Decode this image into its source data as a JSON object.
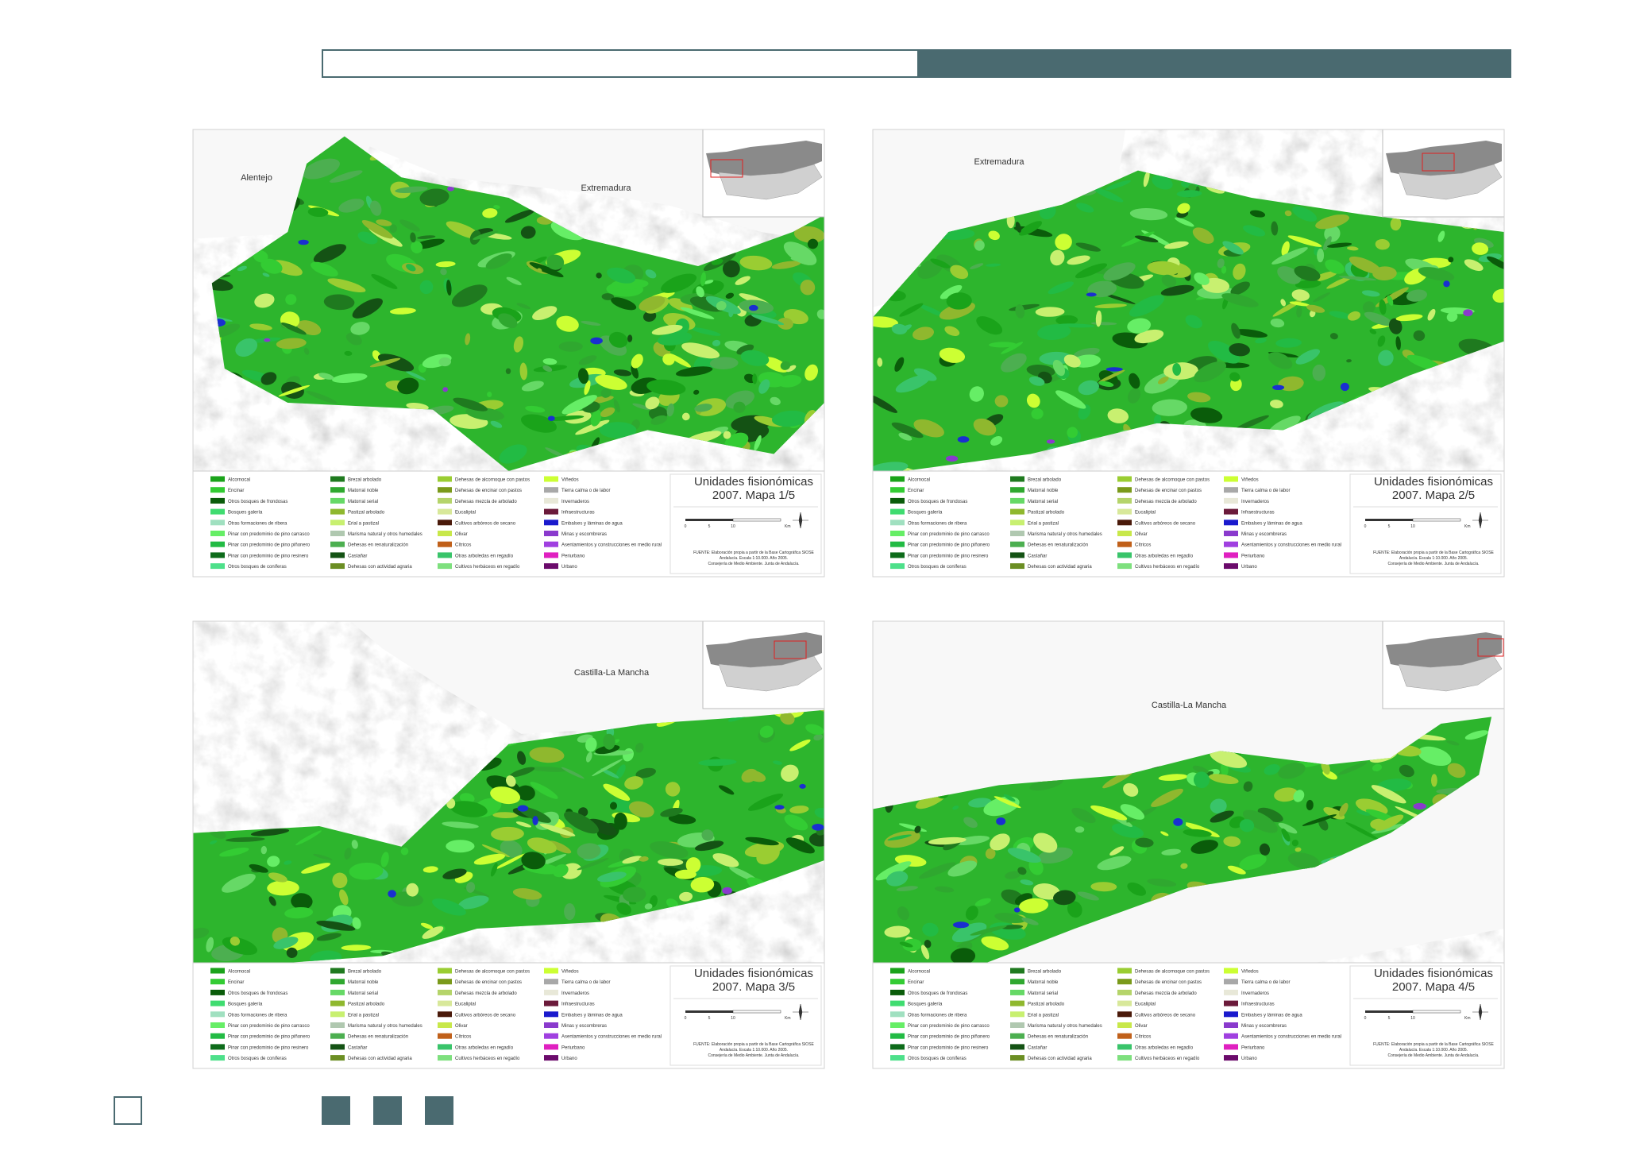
{
  "maps": [
    {
      "regions": [
        "Alentejo",
        "Extremadura"
      ],
      "title": "Unidades fisionómicas",
      "subtitle": "2007. Mapa 1/5"
    },
    {
      "regions": [
        "Extremadura"
      ],
      "title": "Unidades fisionómicas",
      "subtitle": "2007. Mapa 2/5"
    },
    {
      "regions": [
        "Castilla-La Mancha"
      ],
      "title": "Unidades fisionómicas",
      "subtitle": "2007. Mapa 3/5"
    },
    {
      "regions": [
        "Castilla-La Mancha"
      ],
      "title": "Unidades fisionómicas",
      "subtitle": "2007. Mapa 4/5"
    }
  ],
  "legend": [
    {
      "label": "Alcornocal",
      "color": "#1aa31a"
    },
    {
      "label": "Encinar",
      "color": "#33cc33"
    },
    {
      "label": "Otros bosques de frondosas",
      "color": "#0a5c0a"
    },
    {
      "label": "Bosques galería",
      "color": "#3fdc70"
    },
    {
      "label": "Otras formaciones de ribera",
      "color": "#a0e0c0"
    },
    {
      "label": "Pinar con predominio de pino carrasco",
      "color": "#66ee66"
    },
    {
      "label": "Pinar con predominio de pino piñonero",
      "color": "#22bb44"
    },
    {
      "label": "Pinar con predominio de pino resinero",
      "color": "#0d6b1a"
    },
    {
      "label": "Otros bosques de coníferas",
      "color": "#4de08a"
    },
    {
      "label": "Brezal arbolado",
      "color": "#1f7a1f"
    },
    {
      "label": "Matorral noble",
      "color": "#2fa82f"
    },
    {
      "label": "Matorral serial",
      "color": "#66d966"
    },
    {
      "label": "Pastizal arbolado",
      "color": "#8fb82e"
    },
    {
      "label": "Erial a pastizal",
      "color": "#c8f070"
    },
    {
      "label": "Marisma natural y otros humedales",
      "color": "#b0c8b0"
    },
    {
      "label": "Dehesas en renaturalización",
      "color": "#4caf50"
    },
    {
      "label": "Castañar",
      "color": "#145214"
    },
    {
      "label": "Dehesas con actividad agraria",
      "color": "#6b8e23"
    },
    {
      "label": "Dehesas de alcornoque con pastos",
      "color": "#9acd32"
    },
    {
      "label": "Dehesas de encinar con pastos",
      "color": "#7a9a1a"
    },
    {
      "label": "Dehesas mezcla de arbolado",
      "color": "#b5d46a"
    },
    {
      "label": "Eucaliptal",
      "color": "#d8e89a"
    },
    {
      "label": "Cultivos arbóreos de secano",
      "color": "#4a1a0a"
    },
    {
      "label": "Olivar",
      "color": "#c8e84a"
    },
    {
      "label": "Cítricos",
      "color": "#c0601a"
    },
    {
      "label": "Otras arboledas en regadío",
      "color": "#39c46a"
    },
    {
      "label": "Cultivos herbáceos en regadío",
      "color": "#7ee07e"
    },
    {
      "label": "Viñedos",
      "color": "#ccff33"
    },
    {
      "label": "Tierra calma o de labor",
      "color": "#a8a8a8"
    },
    {
      "label": "Invernaderos",
      "color": "#e8e8d8"
    },
    {
      "label": "Infraestructuras",
      "color": "#6b1a3a"
    },
    {
      "label": "Embalses y láminas de agua",
      "color": "#1a1acd"
    },
    {
      "label": "Minas y escombreras",
      "color": "#8a3acd"
    },
    {
      "label": "Asentamientos y construcciones en medio rural",
      "color": "#a040e0"
    },
    {
      "label": "Periurbano",
      "color": "#e020c0"
    },
    {
      "label": "Urbano",
      "color": "#6b0a6b"
    }
  ],
  "scale_labels": [
    "0",
    "5",
    "10",
    "Km"
  ],
  "source": [
    "FUENTE: Elaboración propia a partir de la Base Cartográfica SIOSE",
    "Andalucía. Escala 1:10.000. Año 2005.",
    "Consejería de Medio Ambiente. Junta de Andalucía."
  ]
}
